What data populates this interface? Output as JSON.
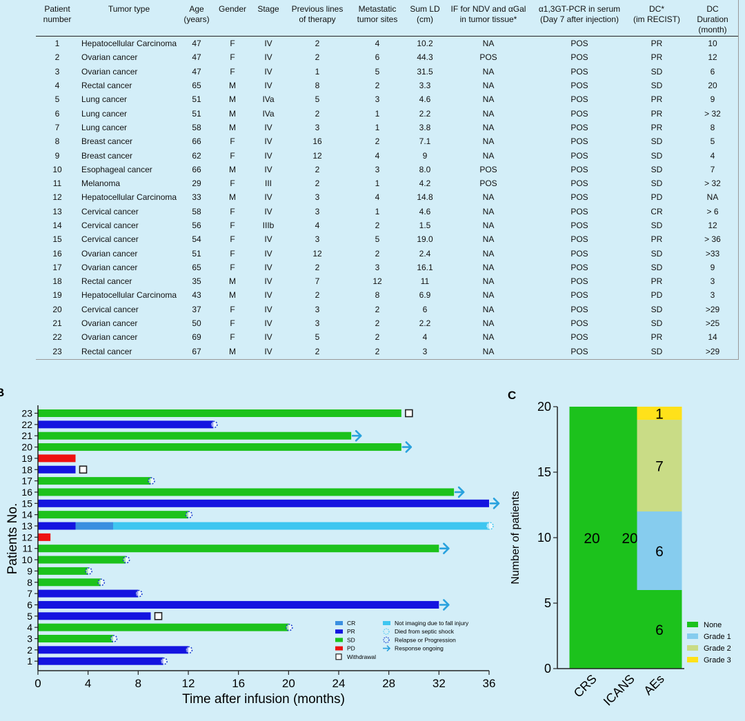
{
  "table": {
    "headers": [
      [
        "Patient",
        "number"
      ],
      [
        "Tumor type"
      ],
      [
        "Age",
        "(years)"
      ],
      [
        "Gender"
      ],
      [
        "Stage"
      ],
      [
        "Previous lines",
        "of therapy"
      ],
      [
        "Metastatic",
        "tumor sites"
      ],
      [
        "Sum LD",
        "(cm)"
      ],
      [
        "IF for NDV and αGal",
        "in tumor tissue*"
      ],
      [
        "α1,3GT-PCR in serum",
        "(Day 7 after injection)"
      ],
      [
        "DC*",
        "(im RECIST)"
      ],
      [
        "DC",
        "Duration",
        "(month)"
      ]
    ],
    "rows": [
      [
        "1",
        "Hepatocellular Carcinoma",
        "47",
        "F",
        "IV",
        "2",
        "4",
        "10.2",
        "NA",
        "POS",
        "PR",
        "10"
      ],
      [
        "2",
        "Ovarian cancer",
        "47",
        "F",
        "IV",
        "2",
        "6",
        "44.3",
        "POS",
        "POS",
        "PR",
        "12"
      ],
      [
        "3",
        "Ovarian cancer",
        "47",
        "F",
        "IV",
        "1",
        "5",
        "31.5",
        "NA",
        "POS",
        "SD",
        "6"
      ],
      [
        "4",
        "Rectal cancer",
        "65",
        "M",
        "IV",
        "8",
        "2",
        "3.3",
        "NA",
        "POS",
        "SD",
        "20"
      ],
      [
        "5",
        "Lung cancer",
        "51",
        "M",
        "IVa",
        "5",
        "3",
        "4.6",
        "NA",
        "POS",
        "PR",
        "9"
      ],
      [
        "6",
        "Lung cancer",
        "51",
        "M",
        "IVa",
        "2",
        "1",
        "2.2",
        "NA",
        "POS",
        "PR",
        "> 32"
      ],
      [
        "7",
        "Lung cancer",
        "58",
        "M",
        "IV",
        "3",
        "1",
        "3.8",
        "NA",
        "POS",
        "PR",
        "8"
      ],
      [
        "8",
        "Breast cancer",
        "66",
        "F",
        "IV",
        "16",
        "2",
        "7.1",
        "NA",
        "POS",
        "SD",
        "5"
      ],
      [
        "9",
        "Breast cancer",
        "62",
        "F",
        "IV",
        "12",
        "4",
        "9",
        "NA",
        "POS",
        "SD",
        "4"
      ],
      [
        "10",
        "Esophageal cancer",
        "66",
        "M",
        "IV",
        "2",
        "3",
        "8.0",
        "POS",
        "POS",
        "SD",
        "7"
      ],
      [
        "11",
        "Melanoma",
        "29",
        "F",
        "III",
        "2",
        "1",
        "4.2",
        "POS",
        "POS",
        "SD",
        "> 32"
      ],
      [
        "12",
        "Hepatocellular Carcinoma",
        "33",
        "M",
        "IV",
        "3",
        "4",
        "14.8",
        "NA",
        "POS",
        "PD",
        "NA"
      ],
      [
        "13",
        "Cervical cancer",
        "58",
        "F",
        "IV",
        "3",
        "1",
        "4.6",
        "NA",
        "POS",
        "CR",
        "> 6"
      ],
      [
        "14",
        "Cervical cancer",
        "56",
        "F",
        "IIIb",
        "4",
        "2",
        "1.5",
        "NA",
        "POS",
        "SD",
        "12"
      ],
      [
        "15",
        "Cervical cancer",
        "54",
        "F",
        "IV",
        "3",
        "5",
        "19.0",
        "NA",
        "POS",
        "PR",
        "> 36"
      ],
      [
        "16",
        "Ovarian cancer",
        "51",
        "F",
        "IV",
        "12",
        "2",
        "2.4",
        "NA",
        "POS",
        "SD",
        ">33"
      ],
      [
        "17",
        "Ovarian cancer",
        "65",
        "F",
        "IV",
        "2",
        "3",
        "16.1",
        "NA",
        "POS",
        "SD",
        "9"
      ],
      [
        "18",
        "Rectal cancer",
        "35",
        "M",
        "IV",
        "7",
        "12",
        "11",
        "NA",
        "POS",
        "PR",
        "3"
      ],
      [
        "19",
        "Hepatocellular Carcinoma",
        "43",
        "M",
        "IV",
        "2",
        "8",
        "6.9",
        "NA",
        "POS",
        "PD",
        "3"
      ],
      [
        "20",
        "Cervical cancer",
        "37",
        "F",
        "IV",
        "3",
        "2",
        "6",
        "NA",
        "POS",
        "SD",
        ">29"
      ],
      [
        "21",
        "Ovarian cancer",
        "50",
        "F",
        "IV",
        "3",
        "2",
        "2.2",
        "NA",
        "POS",
        "SD",
        ">25"
      ],
      [
        "22",
        "Ovarian cancer",
        "69",
        "F",
        "IV",
        "5",
        "2",
        "4",
        "NA",
        "POS",
        "PR",
        "14"
      ],
      [
        "23",
        "Rectal cancer",
        "67",
        "M",
        "IV",
        "2",
        "2",
        "3",
        "NA",
        "POS",
        "SD",
        ">29"
      ]
    ]
  },
  "chart_data": [
    {
      "type": "bar",
      "orientation": "horizontal",
      "panel_label": "B",
      "xlabel": "Time after infusion (months)",
      "ylabel": "Patients No.",
      "xlim": [
        0,
        36
      ],
      "xticks": [
        0,
        4,
        8,
        12,
        16,
        20,
        24,
        28,
        32,
        36
      ],
      "categories": [
        "1",
        "2",
        "3",
        "4",
        "5",
        "6",
        "7",
        "8",
        "9",
        "10",
        "11",
        "12",
        "13",
        "14",
        "15",
        "16",
        "17",
        "18",
        "19",
        "20",
        "21",
        "22",
        "23"
      ],
      "bars": [
        {
          "patient": "1",
          "segments": [
            {
              "status": "PR",
              "start": 0,
              "end": 10
            }
          ],
          "marker": "progression"
        },
        {
          "patient": "2",
          "segments": [
            {
              "status": "PR",
              "start": 0,
              "end": 12
            }
          ],
          "marker": "progression"
        },
        {
          "patient": "3",
          "segments": [
            {
              "status": "SD",
              "start": 0,
              "end": 6
            }
          ],
          "marker": "progression"
        },
        {
          "patient": "4",
          "segments": [
            {
              "status": "SD",
              "start": 0,
              "end": 20
            }
          ],
          "marker": "progression"
        },
        {
          "patient": "5",
          "segments": [
            {
              "status": "PR",
              "start": 0,
              "end": 9
            }
          ],
          "marker": "withdrawal"
        },
        {
          "patient": "6",
          "segments": [
            {
              "status": "PR",
              "start": 0,
              "end": 32
            }
          ],
          "marker": "ongoing"
        },
        {
          "patient": "7",
          "segments": [
            {
              "status": "PR",
              "start": 0,
              "end": 8
            }
          ],
          "marker": "progression"
        },
        {
          "patient": "8",
          "segments": [
            {
              "status": "SD",
              "start": 0,
              "end": 5
            }
          ],
          "marker": "progression"
        },
        {
          "patient": "9",
          "segments": [
            {
              "status": "SD",
              "start": 0,
              "end": 4
            }
          ],
          "marker": "progression"
        },
        {
          "patient": "10",
          "segments": [
            {
              "status": "SD",
              "start": 0,
              "end": 7
            }
          ],
          "marker": "progression"
        },
        {
          "patient": "11",
          "segments": [
            {
              "status": "SD",
              "start": 0,
              "end": 32
            }
          ],
          "marker": "ongoing"
        },
        {
          "patient": "12",
          "segments": [
            {
              "status": "PD",
              "start": 0,
              "end": 1
            }
          ],
          "marker": "none"
        },
        {
          "patient": "13",
          "segments": [
            {
              "status": "PR",
              "start": 0,
              "end": 3
            },
            {
              "status": "CR",
              "start": 3,
              "end": 6
            },
            {
              "status": "Not imaging",
              "start": 6,
              "end": 36
            }
          ],
          "marker": "septic"
        },
        {
          "patient": "14",
          "segments": [
            {
              "status": "SD",
              "start": 0,
              "end": 12
            }
          ],
          "marker": "progression"
        },
        {
          "patient": "15",
          "segments": [
            {
              "status": "PR",
              "start": 0,
              "end": 36
            }
          ],
          "marker": "ongoing"
        },
        {
          "patient": "16",
          "segments": [
            {
              "status": "SD",
              "start": 0,
              "end": 33.2
            }
          ],
          "marker": "ongoing"
        },
        {
          "patient": "17",
          "segments": [
            {
              "status": "SD",
              "start": 0,
              "end": 9
            }
          ],
          "marker": "progression"
        },
        {
          "patient": "18",
          "segments": [
            {
              "status": "PR",
              "start": 0,
              "end": 3
            }
          ],
          "marker": "withdrawal"
        },
        {
          "patient": "19",
          "segments": [
            {
              "status": "PD",
              "start": 0,
              "end": 3
            }
          ],
          "marker": "none"
        },
        {
          "patient": "20",
          "segments": [
            {
              "status": "SD",
              "start": 0,
              "end": 29
            }
          ],
          "marker": "ongoing"
        },
        {
          "patient": "21",
          "segments": [
            {
              "status": "SD",
              "start": 0,
              "end": 25
            }
          ],
          "marker": "ongoing"
        },
        {
          "patient": "22",
          "segments": [
            {
              "status": "PR",
              "start": 0,
              "end": 14
            }
          ],
          "marker": "progression"
        },
        {
          "patient": "23",
          "segments": [
            {
              "status": "SD",
              "start": 0,
              "end": 29
            }
          ],
          "marker": "withdrawal"
        }
      ],
      "status_colors": {
        "CR": "#3a8fe0",
        "PR": "#1414e0",
        "SD": "#1cc21c",
        "PD": "#ee1111",
        "Not imaging": "#3ec6f0"
      },
      "legend": [
        {
          "key": "CR",
          "label": "CR"
        },
        {
          "key": "PR",
          "label": "PR"
        },
        {
          "key": "SD",
          "label": "SD"
        },
        {
          "key": "PD",
          "label": "PD"
        },
        {
          "key": "withdrawal",
          "label": "Withdrawal"
        },
        {
          "key": "Not imaging",
          "label": "Not imaging due to fall injury"
        },
        {
          "key": "septic",
          "label": "Died from septic shock"
        },
        {
          "key": "progression",
          "label": "Relapse or Progression"
        },
        {
          "key": "ongoing",
          "label": "Response ongoing"
        }
      ]
    },
    {
      "type": "bar",
      "stacked": true,
      "panel_label": "C",
      "ylabel": "Number of patients",
      "ylim": [
        0,
        20
      ],
      "yticks": [
        0,
        5,
        10,
        15,
        20
      ],
      "categories": [
        "CRS",
        "ICANS",
        "AEs"
      ],
      "series": [
        {
          "name": "None",
          "color": "#1cc21c",
          "values": [
            20,
            20,
            6
          ]
        },
        {
          "name": "Grade 1",
          "color": "#86ccee",
          "values": [
            0,
            0,
            6
          ]
        },
        {
          "name": "Grade 2",
          "color": "#c9dc86",
          "values": [
            0,
            0,
            7
          ]
        },
        {
          "name": "Grade 3",
          "color": "#ffe11a",
          "values": [
            0,
            0,
            1
          ]
        }
      ]
    }
  ]
}
